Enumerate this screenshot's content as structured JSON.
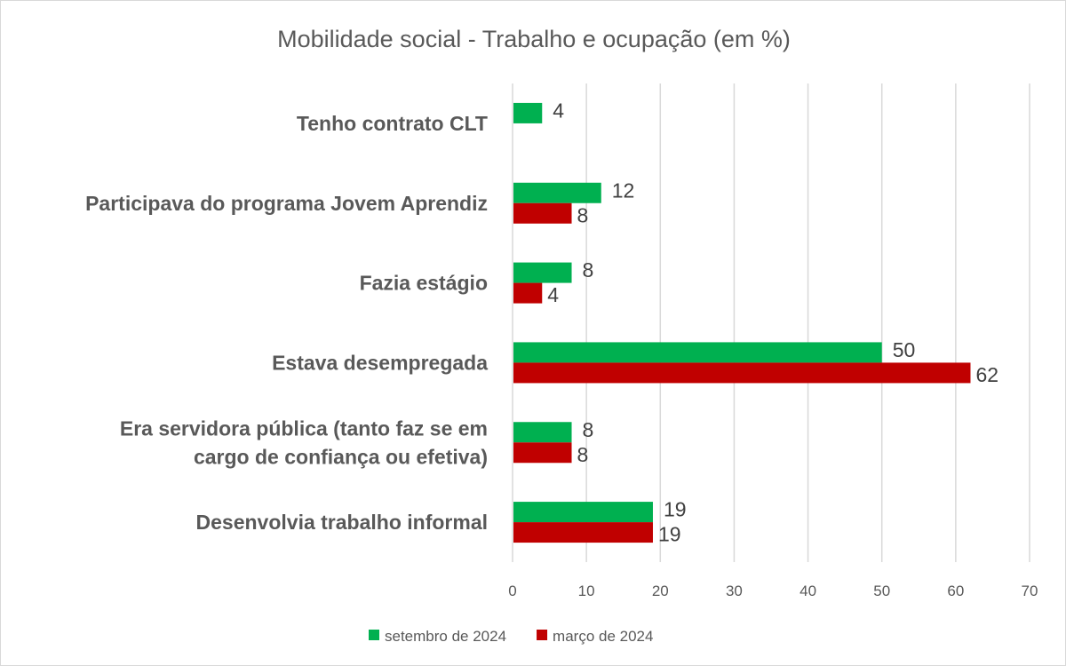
{
  "chart_data": {
    "type": "bar",
    "orientation": "horizontal",
    "title": "Mobilidade social - Trabalho e ocupação (em %)",
    "xlabel": "",
    "ylabel": "",
    "categories": [
      [
        "Tenho contrato CLT"
      ],
      [
        "Participava do programa Jovem Aprendiz"
      ],
      [
        "Fazia estágio"
      ],
      [
        "Estava desempregada"
      ],
      [
        "Era servidora pública (tanto faz se em",
        "cargo de confiança ou efetiva)"
      ],
      [
        "Desenvolvia trabalho informal"
      ]
    ],
    "series": [
      {
        "name": "setembro de 2024",
        "color": "#00B050",
        "values": [
          4,
          12,
          8,
          50,
          8,
          19
        ]
      },
      {
        "name": "março de 2024",
        "color": "#C00000",
        "values": [
          null,
          8,
          4,
          62,
          8,
          19
        ]
      }
    ],
    "xlim": [
      0,
      70
    ],
    "xticks": [
      "0",
      "10",
      "20",
      "30",
      "40",
      "50",
      "60",
      "70"
    ],
    "grid": "vertical",
    "data_labels": true,
    "legend_position": "bottom"
  }
}
